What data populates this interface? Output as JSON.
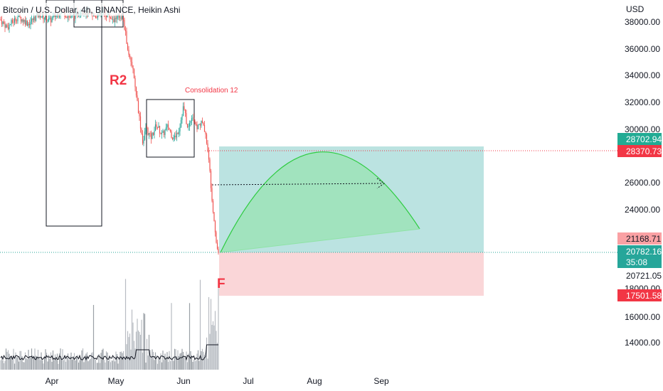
{
  "chart_data": {
    "type": "candlestick",
    "title": "Bitcoin / U.S. Dollar, 4h, BINANCE, Heikin Ashi",
    "currency_label": "USD",
    "price_ticks": [
      "38000.00",
      "36000.00",
      "34000.00",
      "32000.00",
      "30000.00",
      "26000.00",
      "24000.00",
      "18000.00",
      "16000.00",
      "14000.00"
    ],
    "price_tick_values": [
      38000,
      36000,
      34000,
      32000,
      30000,
      26000,
      24000,
      18000,
      16000,
      14000
    ],
    "time_ticks": [
      "Apr",
      "May",
      "Jun",
      "Jul",
      "Aug",
      "Sep"
    ],
    "price_path": [
      {
        "t": 0,
        "p": 38200
      },
      {
        "t": 10,
        "p": 37600
      },
      {
        "t": 25,
        "p": 38400
      },
      {
        "t": 40,
        "p": 37900
      },
      {
        "t": 55,
        "p": 38600
      },
      {
        "t": 70,
        "p": 38100
      },
      {
        "t": 85,
        "p": 38800
      },
      {
        "t": 100,
        "p": 38300
      },
      {
        "t": 115,
        "p": 38900
      },
      {
        "t": 130,
        "p": 38400
      },
      {
        "t": 145,
        "p": 38700
      },
      {
        "t": 160,
        "p": 38200
      },
      {
        "t": 172,
        "p": 38500
      },
      {
        "t": 180,
        "p": 36000
      },
      {
        "t": 186,
        "p": 34800
      },
      {
        "t": 192,
        "p": 32500
      },
      {
        "t": 197,
        "p": 30500
      },
      {
        "t": 201,
        "p": 29000
      },
      {
        "t": 205,
        "p": 30200
      },
      {
        "t": 212,
        "p": 29400
      },
      {
        "t": 220,
        "p": 30400
      },
      {
        "t": 228,
        "p": 29600
      },
      {
        "t": 236,
        "p": 30300
      },
      {
        "t": 244,
        "p": 29300
      },
      {
        "t": 252,
        "p": 30100
      },
      {
        "t": 258,
        "p": 31800
      },
      {
        "t": 264,
        "p": 30000
      },
      {
        "t": 270,
        "p": 31200
      },
      {
        "t": 276,
        "p": 30100
      },
      {
        "t": 283,
        "p": 30600
      },
      {
        "t": 289,
        "p": 29800
      },
      {
        "t": 294,
        "p": 27500
      },
      {
        "t": 298,
        "p": 25000
      },
      {
        "t": 302,
        "p": 22800
      },
      {
        "t": 305,
        "p": 21300
      },
      {
        "t": 308,
        "p": 20782
      }
    ],
    "annotations": {
      "r2_label": "R2",
      "f_label": "F",
      "consolidation_label": "Consolidation 12"
    },
    "position": {
      "entry": 21168.71,
      "target": 28702.94,
      "stop": 17501.58,
      "profit_color": "#b7e1df",
      "loss_color": "#fad4d6"
    },
    "badges": [
      {
        "text": "28702.94",
        "value": 28702.94,
        "bg": "#22ab94",
        "fg": "#ffffff"
      },
      {
        "text": "28370.73",
        "value": 28370.73,
        "bg": "#f23645",
        "fg": "#ffffff"
      },
      {
        "text": "21168.71",
        "value": 21168.71,
        "bg": "#faa1a4",
        "fg": "#131722"
      },
      {
        "text": "20782.16",
        "value": 20782.16,
        "bg": "#26a69a",
        "fg": "#ffffff"
      },
      {
        "text": "35:08",
        "value": 20500,
        "bg": "#26a69a",
        "fg": "#ffffff"
      },
      {
        "text": "20721.05",
        "value": 20721.05,
        "bg": "#ffffff",
        "fg": "#131722"
      },
      {
        "text": "17501.58",
        "value": 17501.58,
        "bg": "#f23645",
        "fg": "#ffffff"
      }
    ],
    "colors": {
      "up": "#26a69a",
      "down": "#ef5350",
      "arc": "#2ecc40",
      "arc_fill": "#8fe3a6",
      "dotted_red": "#f23645",
      "dotted_green": "#26a69a"
    }
  }
}
